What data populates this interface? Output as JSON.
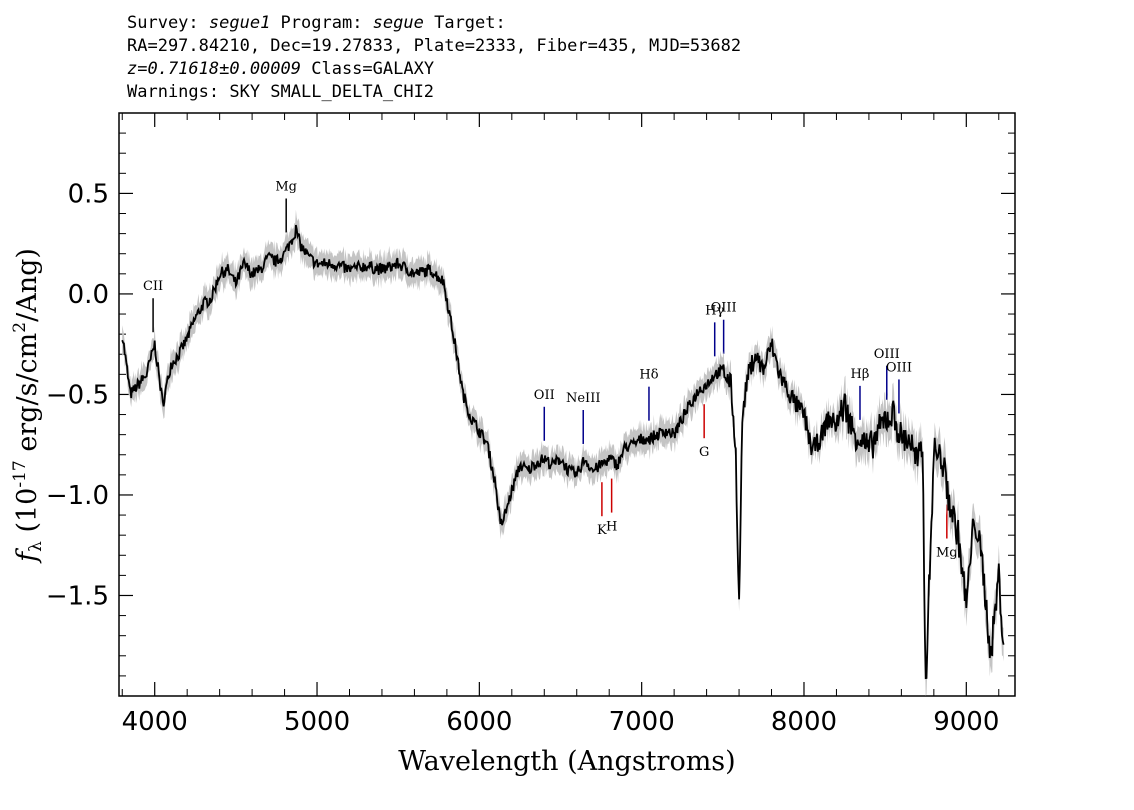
{
  "header": {
    "line1_a": "Survey: ",
    "line1_survey": "segue1",
    "line1_b": " Program: ",
    "line1_program": "segue",
    "line1_c": " Target:",
    "line2": "RA=297.84210, Dec=19.27833, Plate=2333, Fiber=435, MJD=53682",
    "line3_z": "z=0.71618±0.00009",
    "line3_class": " Class=GALAXY",
    "line4": "Warnings: SKY SMALL_DELTA_CHI2"
  },
  "chart_data": {
    "type": "line",
    "title": "",
    "xlabel": "Wavelength (Angstroms)",
    "ylabel": "f",
    "ylabel_sub": "λ",
    "ylabel_rest": " (10",
    "ylabel_exp": "-17",
    "ylabel_units": " erg/s/cm",
    "ylabel_exp2": "2",
    "ylabel_end": "/Ang)",
    "xlim": [
      3780,
      9300
    ],
    "ylim": [
      -2.0,
      0.9
    ],
    "xticks": [
      4000,
      5000,
      6000,
      7000,
      8000,
      9000
    ],
    "xtick_labels": [
      "4000",
      "5000",
      "6000",
      "7000",
      "8000",
      "9000"
    ],
    "yticks": [
      0.5,
      0.0,
      -0.5,
      -1.0,
      -1.5
    ],
    "ytick_labels": [
      "0.5",
      "0.0",
      "−0.5",
      "−1.0",
      "−1.5"
    ],
    "grid": false,
    "series": [
      {
        "color": "#000000",
        "x": [
          3800,
          3850,
          3900,
          3950,
          4000,
          4050,
          4100,
          4150,
          4200,
          4250,
          4300,
          4350,
          4400,
          4450,
          4500,
          4550,
          4600,
          4650,
          4700,
          4750,
          4800,
          4850,
          4870,
          4900,
          4950,
          5000,
          5100,
          5200,
          5300,
          5400,
          5500,
          5600,
          5700,
          5780,
          5850,
          5900,
          5950,
          6000,
          6050,
          6100,
          6130,
          6150,
          6200,
          6250,
          6300,
          6350,
          6400,
          6450,
          6500,
          6550,
          6600,
          6650,
          6700,
          6750,
          6800,
          6850,
          6900,
          6950,
          7000,
          7050,
          7100,
          7150,
          7200,
          7250,
          7300,
          7350,
          7400,
          7450,
          7500,
          7550,
          7580,
          7600,
          7620,
          7650,
          7700,
          7750,
          7800,
          7850,
          7900,
          7950,
          8000,
          8050,
          8100,
          8150,
          8200,
          8250,
          8300,
          8350,
          8400,
          8450,
          8500,
          8550,
          8600,
          8650,
          8700,
          8730,
          8750,
          8800,
          8850,
          8900,
          8950,
          9000,
          9050,
          9100,
          9150,
          9200,
          9230
        ],
        "y": [
          -0.2,
          -0.5,
          -0.45,
          -0.4,
          -0.25,
          -0.55,
          -0.35,
          -0.3,
          -0.22,
          -0.12,
          -0.05,
          -0.02,
          0.1,
          0.12,
          0.05,
          0.15,
          0.1,
          0.12,
          0.18,
          0.16,
          0.2,
          0.28,
          0.32,
          0.24,
          0.18,
          0.15,
          0.15,
          0.12,
          0.14,
          0.12,
          0.15,
          0.1,
          0.12,
          0.06,
          -0.25,
          -0.5,
          -0.62,
          -0.68,
          -0.75,
          -0.95,
          -1.15,
          -1.12,
          -0.98,
          -0.85,
          -0.88,
          -0.84,
          -0.82,
          -0.85,
          -0.82,
          -0.88,
          -0.9,
          -0.82,
          -0.88,
          -0.85,
          -0.82,
          -0.85,
          -0.76,
          -0.75,
          -0.72,
          -0.72,
          -0.7,
          -0.68,
          -0.7,
          -0.62,
          -0.55,
          -0.48,
          -0.45,
          -0.4,
          -0.38,
          -0.45,
          -0.8,
          -1.55,
          -0.62,
          -0.42,
          -0.3,
          -0.38,
          -0.25,
          -0.4,
          -0.48,
          -0.55,
          -0.6,
          -0.78,
          -0.72,
          -0.62,
          -0.65,
          -0.55,
          -0.68,
          -0.72,
          -0.78,
          -0.7,
          -0.62,
          -0.6,
          -0.72,
          -0.72,
          -0.85,
          -0.75,
          -1.95,
          -0.78,
          -0.82,
          -1.05,
          -1.2,
          -1.55,
          -1.1,
          -1.35,
          -1.8,
          -1.4,
          -1.75
        ]
      }
    ],
    "line_markers": [
      {
        "label": "CII",
        "x": 3990,
        "color": "#000000"
      },
      {
        "label": "Mg",
        "x": 4810,
        "color": "#000000"
      },
      {
        "label": "OII",
        "x": 6400,
        "color": "#00008b"
      },
      {
        "label": "NeIII",
        "x": 6640,
        "color": "#00008b"
      },
      {
        "label": "Hδ",
        "x": 7045,
        "color": "#00008b"
      },
      {
        "label": "Hγ",
        "x": 7450,
        "color": "#00008b"
      },
      {
        "label": "OIII",
        "x": 7505,
        "color": "#00008b"
      },
      {
        "label": "Hβ",
        "x": 8345,
        "color": "#00008b"
      },
      {
        "label": "OIII",
        "x": 8510,
        "color": "#00008b"
      },
      {
        "label": "OIII",
        "x": 8585,
        "color": "#00008b"
      },
      {
        "label": "K",
        "x": 6755,
        "color": "#cc0000"
      },
      {
        "label": "H",
        "x": 6815,
        "color": "#cc0000"
      },
      {
        "label": "G",
        "x": 7385,
        "color": "#cc0000"
      },
      {
        "label": "Mg",
        "x": 8880,
        "color": "#cc0000"
      }
    ]
  }
}
